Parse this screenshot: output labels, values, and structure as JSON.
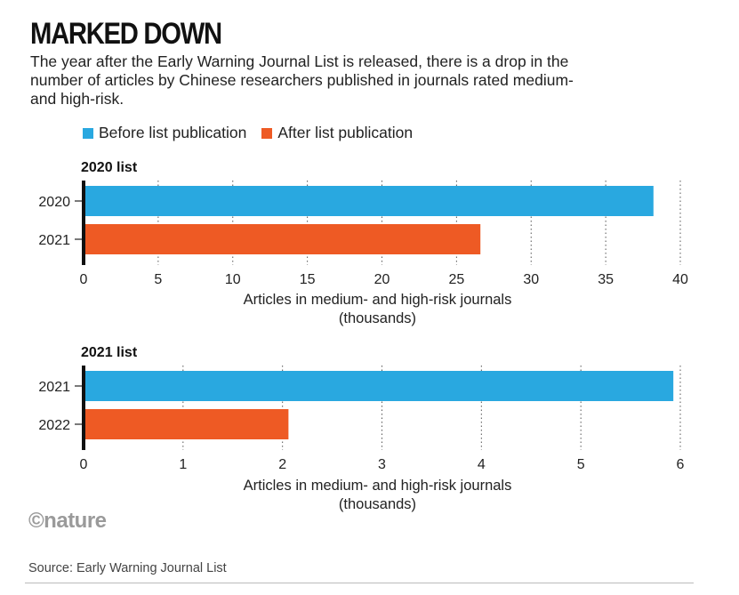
{
  "header": {
    "title": "MARKED DOWN",
    "subtitle": "The year after the Early Warning Journal List is released, there is a drop in the number of articles by Chinese researchers published in journals rated medium- and high-risk."
  },
  "legend": {
    "before_label": "Before list publication",
    "after_label": "After list publication"
  },
  "colors": {
    "before": "#29a8e0",
    "after": "#ee5a24"
  },
  "chart_data": [
    {
      "type": "bar",
      "orientation": "horizontal",
      "title": "2020 list",
      "categories": [
        "2020",
        "2021"
      ],
      "series": [
        {
          "name": "Before list publication",
          "values": [
            38.2,
            null
          ]
        },
        {
          "name": "After list publication",
          "values": [
            null,
            26.6
          ]
        }
      ],
      "xlabel": "Articles in medium- and high-risk journals (thousands)",
      "xlabel_lines": [
        "Articles in medium- and high-risk journals",
        "(thousands)"
      ],
      "xticks": [
        0,
        5,
        10,
        15,
        20,
        25,
        30,
        35,
        40
      ],
      "xlim": [
        0,
        40
      ],
      "grid": "vertical dotted"
    },
    {
      "type": "bar",
      "orientation": "horizontal",
      "title": "2021 list",
      "categories": [
        "2021",
        "2022"
      ],
      "series": [
        {
          "name": "Before list publication",
          "values": [
            5.93,
            null
          ]
        },
        {
          "name": "After list publication",
          "values": [
            null,
            2.06
          ]
        }
      ],
      "xlabel": "Articles in medium- and high-risk journals (thousands)",
      "xlabel_lines": [
        "Articles in medium- and high-risk journals",
        "(thousands)"
      ],
      "xticks": [
        0,
        1,
        2,
        3,
        4,
        5,
        6
      ],
      "xlim": [
        0,
        6
      ],
      "grid": "vertical dotted"
    }
  ],
  "footer": {
    "logo": "©nature",
    "source": "Source: Early Warning Journal List"
  }
}
